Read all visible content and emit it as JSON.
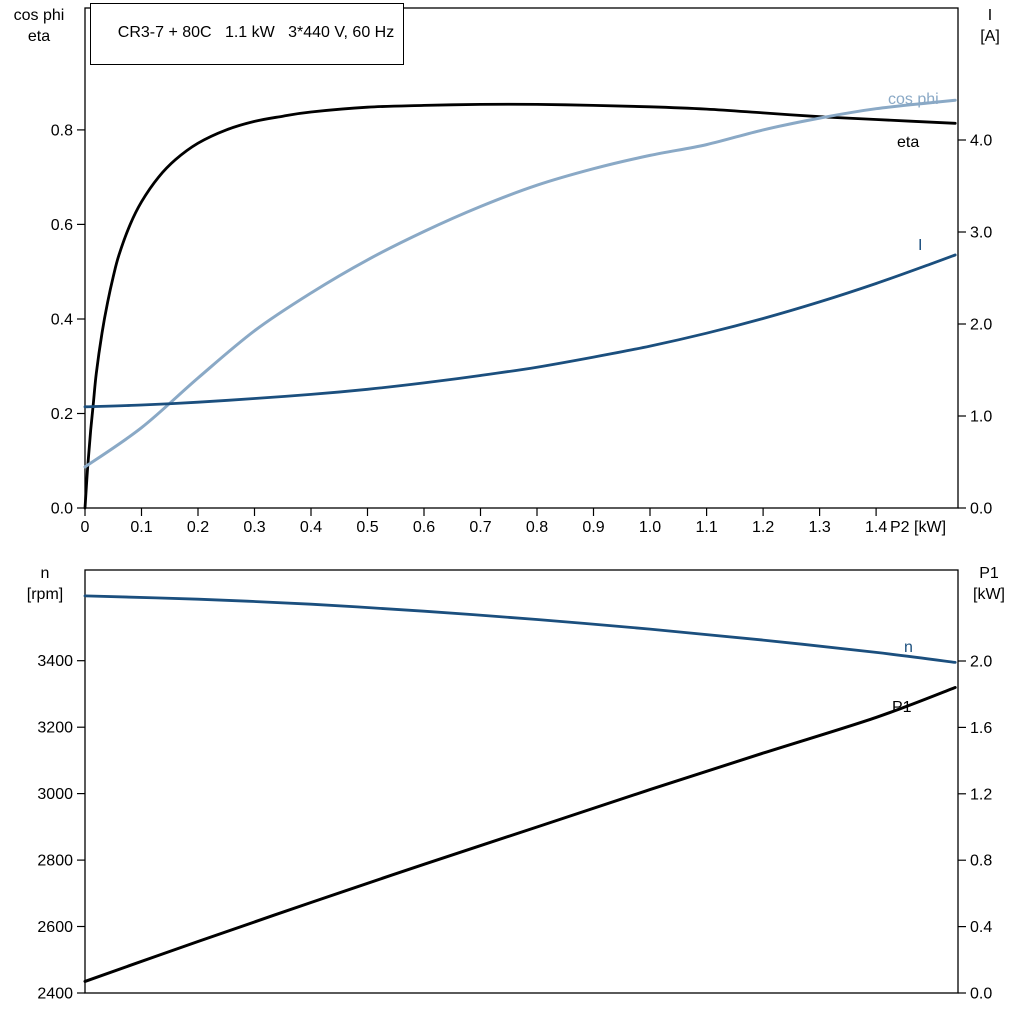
{
  "title_box": "CR3-7 + 80C   1.1 kW   3*440 V, 60 Hz",
  "colors": {
    "black": "#000000",
    "dark_blue": "#1b4f7e",
    "light_blue": "#8aa9c6",
    "axis": "#000000",
    "background": "#ffffff"
  },
  "chart_data": [
    {
      "type": "line",
      "title": "CR3-7 + 80C   1.1 kW   3*440 V, 60 Hz",
      "x_axis": {
        "label": "P2 [kW]",
        "range": [
          0,
          1.545
        ],
        "ticks": [
          0,
          0.1,
          0.2,
          0.3,
          0.4,
          0.5,
          0.6,
          0.7,
          0.8,
          0.9,
          1.0,
          1.1,
          1.2,
          1.3,
          1.4
        ],
        "tick_labels": [
          "0",
          "0.1",
          "0.2",
          "0.3",
          "0.4",
          "0.5",
          "0.6",
          "0.7",
          "0.8",
          "0.9",
          "1.0",
          "1.1",
          "1.2",
          "1.3",
          "1.4"
        ]
      },
      "y_left": {
        "label_lines": [
          "cos phi",
          "eta"
        ],
        "range": [
          0,
          1.058
        ],
        "ticks": [
          0,
          0.2,
          0.4,
          0.6,
          0.8
        ],
        "tick_labels": [
          "0.0",
          "0.2",
          "0.4",
          "0.6",
          "0.8"
        ]
      },
      "y_right": {
        "label_lines": [
          "I",
          "[A]"
        ],
        "range": [
          0,
          5.435
        ],
        "ticks": [
          0,
          1,
          2,
          3,
          4
        ],
        "tick_labels": [
          "0.0",
          "1.0",
          "2.0",
          "3.0",
          "4.0"
        ]
      },
      "grid": false,
      "series": [
        {
          "name": "eta",
          "label": "eta",
          "axis": "left",
          "color": "#000000",
          "width": 2.8,
          "points": [
            [
              0,
              0
            ],
            [
              0.005,
              0.09
            ],
            [
              0.01,
              0.165
            ],
            [
              0.015,
              0.225
            ],
            [
              0.02,
              0.285
            ],
            [
              0.03,
              0.37
            ],
            [
              0.04,
              0.435
            ],
            [
              0.05,
              0.49
            ],
            [
              0.06,
              0.535
            ],
            [
              0.08,
              0.6
            ],
            [
              0.1,
              0.648
            ],
            [
              0.13,
              0.7
            ],
            [
              0.16,
              0.737
            ],
            [
              0.2,
              0.772
            ],
            [
              0.25,
              0.8
            ],
            [
              0.3,
              0.818
            ],
            [
              0.35,
              0.829
            ],
            [
              0.4,
              0.838
            ],
            [
              0.5,
              0.848
            ],
            [
              0.6,
              0.852
            ],
            [
              0.7,
              0.854
            ],
            [
              0.8,
              0.854
            ],
            [
              0.9,
              0.852
            ],
            [
              1.0,
              0.849
            ],
            [
              1.1,
              0.844
            ],
            [
              1.2,
              0.836
            ],
            [
              1.3,
              0.828
            ],
            [
              1.4,
              0.822
            ],
            [
              1.54,
              0.814
            ]
          ]
        },
        {
          "name": "cos phi",
          "label": "cos phi",
          "axis": "left",
          "color": "#8aa9c6",
          "width": 3,
          "points": [
            [
              0,
              0.087
            ],
            [
              0.1,
              0.17
            ],
            [
              0.2,
              0.275
            ],
            [
              0.3,
              0.375
            ],
            [
              0.4,
              0.455
            ],
            [
              0.5,
              0.525
            ],
            [
              0.6,
              0.585
            ],
            [
              0.7,
              0.638
            ],
            [
              0.8,
              0.683
            ],
            [
              0.9,
              0.718
            ],
            [
              1.0,
              0.746
            ],
            [
              1.1,
              0.769
            ],
            [
              1.2,
              0.8
            ],
            [
              1.3,
              0.825
            ],
            [
              1.4,
              0.845
            ],
            [
              1.5,
              0.858
            ],
            [
              1.54,
              0.863
            ]
          ]
        },
        {
          "name": "I",
          "label": "I",
          "axis": "right",
          "color": "#1b4f7e",
          "width": 2.8,
          "points": [
            [
              0,
              1.1
            ],
            [
              0.1,
              1.12
            ],
            [
              0.2,
              1.15
            ],
            [
              0.3,
              1.19
            ],
            [
              0.4,
              1.235
            ],
            [
              0.5,
              1.29
            ],
            [
              0.6,
              1.36
            ],
            [
              0.7,
              1.44
            ],
            [
              0.8,
              1.53
            ],
            [
              0.9,
              1.64
            ],
            [
              1.0,
              1.76
            ],
            [
              1.1,
              1.9
            ],
            [
              1.2,
              2.06
            ],
            [
              1.3,
              2.24
            ],
            [
              1.4,
              2.44
            ],
            [
              1.5,
              2.66
            ],
            [
              1.54,
              2.75
            ]
          ]
        }
      ]
    },
    {
      "type": "line",
      "x_axis": {
        "label": "",
        "range": [
          0,
          1.545
        ],
        "ticks": [],
        "tick_labels": []
      },
      "y_left": {
        "label_lines": [
          "n",
          "[rpm]"
        ],
        "range": [
          2400,
          3673
        ],
        "ticks": [
          2400,
          2600,
          2800,
          3000,
          3200,
          3400
        ],
        "tick_labels": [
          "2400",
          "2600",
          "2800",
          "3000",
          "3200",
          "3400"
        ]
      },
      "y_right": {
        "label_lines": [
          "P1",
          "[kW]"
        ],
        "range": [
          0,
          2.548
        ],
        "ticks": [
          0,
          0.4,
          0.8,
          1.2,
          1.6,
          2.0
        ],
        "tick_labels": [
          "0.0",
          "0.4",
          "0.8",
          "1.2",
          "1.6",
          "2.0"
        ]
      },
      "grid": false,
      "series": [
        {
          "name": "n",
          "label": "n",
          "axis": "left",
          "color": "#1b4f7e",
          "width": 2.8,
          "points": [
            [
              0,
              3595
            ],
            [
              0.2,
              3585
            ],
            [
              0.4,
              3570
            ],
            [
              0.6,
              3549
            ],
            [
              0.8,
              3524
            ],
            [
              1.0,
              3495
            ],
            [
              1.2,
              3462
            ],
            [
              1.4,
              3425
            ],
            [
              1.54,
              3395
            ]
          ]
        },
        {
          "name": "P1",
          "label": "P1",
          "axis": "right",
          "color": "#000000",
          "width": 3,
          "points": [
            [
              0,
              0.07
            ],
            [
              0.2,
              0.31
            ],
            [
              0.4,
              0.545
            ],
            [
              0.6,
              0.775
            ],
            [
              0.8,
              1.0
            ],
            [
              1.0,
              1.225
            ],
            [
              1.2,
              1.445
            ],
            [
              1.4,
              1.66
            ],
            [
              1.54,
              1.84
            ]
          ]
        }
      ]
    }
  ]
}
